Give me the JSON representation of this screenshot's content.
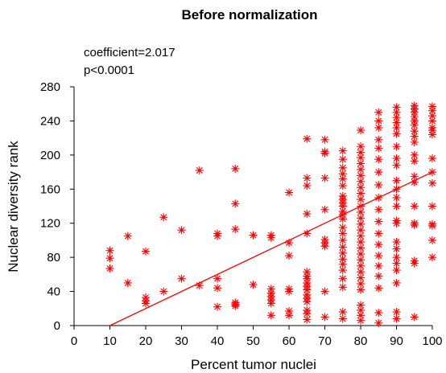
{
  "chart_data": {
    "type": "scatter",
    "title": "Before normalization",
    "annotations": [
      "coefficient=2.017",
      "p<0.0001"
    ],
    "xlabel": "Percent tumor nuclei",
    "ylabel": "Nuclear diversity rank",
    "xlim": [
      0,
      100
    ],
    "ylim": [
      0,
      280
    ],
    "xticks": [
      0,
      10,
      20,
      30,
      40,
      50,
      60,
      70,
      80,
      90,
      100
    ],
    "yticks": [
      0,
      40,
      80,
      120,
      160,
      200,
      240,
      280
    ],
    "grid": false,
    "marker": "asterisk",
    "color": "#ff0000",
    "fit_line": {
      "x": [
        10,
        100
      ],
      "y": [
        0,
        180
      ]
    },
    "points": [
      [
        10,
        88
      ],
      [
        10,
        79
      ],
      [
        10,
        67
      ],
      [
        15,
        105
      ],
      [
        15,
        50
      ],
      [
        20,
        87
      ],
      [
        20,
        33
      ],
      [
        20,
        29
      ],
      [
        20,
        26
      ],
      [
        25,
        127
      ],
      [
        25,
        40
      ],
      [
        30,
        112
      ],
      [
        30,
        55
      ],
      [
        35,
        182
      ],
      [
        35,
        47
      ],
      [
        40,
        108
      ],
      [
        40,
        105
      ],
      [
        40,
        55
      ],
      [
        40,
        44
      ],
      [
        40,
        22
      ],
      [
        45,
        184
      ],
      [
        45,
        143
      ],
      [
        45,
        113
      ],
      [
        45,
        27
      ],
      [
        45,
        25
      ],
      [
        45,
        23
      ],
      [
        50,
        106
      ],
      [
        50,
        48
      ],
      [
        55,
        106
      ],
      [
        55,
        103
      ],
      [
        55,
        43
      ],
      [
        55,
        38
      ],
      [
        55,
        34
      ],
      [
        55,
        30
      ],
      [
        55,
        26
      ],
      [
        55,
        12
      ],
      [
        60,
        156
      ],
      [
        60,
        97
      ],
      [
        60,
        82
      ],
      [
        60,
        43
      ],
      [
        60,
        40
      ],
      [
        60,
        17
      ],
      [
        60,
        12
      ],
      [
        65,
        219
      ],
      [
        65,
        173
      ],
      [
        65,
        164
      ],
      [
        65,
        131
      ],
      [
        65,
        108
      ],
      [
        65,
        63
      ],
      [
        65,
        58
      ],
      [
        65,
        55
      ],
      [
        65,
        50
      ],
      [
        65,
        46
      ],
      [
        65,
        42
      ],
      [
        65,
        36
      ],
      [
        65,
        32
      ],
      [
        65,
        28
      ],
      [
        65,
        18
      ],
      [
        65,
        14
      ],
      [
        65,
        7
      ],
      [
        70,
        218
      ],
      [
        70,
        204
      ],
      [
        70,
        202
      ],
      [
        70,
        173
      ],
      [
        70,
        136
      ],
      [
        70,
        101
      ],
      [
        70,
        97
      ],
      [
        70,
        93
      ],
      [
        70,
        40
      ],
      [
        70,
        10
      ],
      [
        75,
        205
      ],
      [
        75,
        195
      ],
      [
        75,
        185
      ],
      [
        75,
        178
      ],
      [
        75,
        172
      ],
      [
        75,
        164
      ],
      [
        75,
        152
      ],
      [
        75,
        148
      ],
      [
        75,
        144
      ],
      [
        75,
        140
      ],
      [
        75,
        134
      ],
      [
        75,
        130
      ],
      [
        75,
        125
      ],
      [
        75,
        115
      ],
      [
        75,
        108
      ],
      [
        75,
        100
      ],
      [
        75,
        92
      ],
      [
        75,
        85
      ],
      [
        75,
        78
      ],
      [
        75,
        72
      ],
      [
        75,
        65
      ],
      [
        75,
        55
      ],
      [
        75,
        45
      ],
      [
        75,
        16
      ],
      [
        75,
        8
      ],
      [
        80,
        229
      ],
      [
        80,
        210
      ],
      [
        80,
        203
      ],
      [
        80,
        197
      ],
      [
        80,
        190
      ],
      [
        80,
        183
      ],
      [
        80,
        176
      ],
      [
        80,
        169
      ],
      [
        80,
        162
      ],
      [
        80,
        155
      ],
      [
        80,
        148
      ],
      [
        80,
        140
      ],
      [
        80,
        133
      ],
      [
        80,
        126
      ],
      [
        80,
        119
      ],
      [
        80,
        112
      ],
      [
        80,
        105
      ],
      [
        80,
        98
      ],
      [
        80,
        91
      ],
      [
        80,
        84
      ],
      [
        80,
        77
      ],
      [
        80,
        70
      ],
      [
        80,
        63
      ],
      [
        80,
        56
      ],
      [
        80,
        49
      ],
      [
        80,
        42
      ],
      [
        80,
        24
      ],
      [
        80,
        18
      ],
      [
        80,
        12
      ],
      [
        80,
        6
      ],
      [
        85,
        250
      ],
      [
        85,
        240
      ],
      [
        85,
        232
      ],
      [
        85,
        218
      ],
      [
        85,
        208
      ],
      [
        85,
        195
      ],
      [
        85,
        180
      ],
      [
        85,
        165
      ],
      [
        85,
        150
      ],
      [
        85,
        136
      ],
      [
        85,
        122
      ],
      [
        85,
        108
      ],
      [
        85,
        95
      ],
      [
        85,
        82
      ],
      [
        85,
        70
      ],
      [
        85,
        58
      ],
      [
        85,
        44
      ],
      [
        85,
        15
      ],
      [
        85,
        3
      ],
      [
        90,
        256
      ],
      [
        90,
        250
      ],
      [
        90,
        244
      ],
      [
        90,
        238
      ],
      [
        90,
        232
      ],
      [
        90,
        225
      ],
      [
        90,
        210
      ],
      [
        90,
        196
      ],
      [
        90,
        188
      ],
      [
        90,
        170
      ],
      [
        90,
        160
      ],
      [
        90,
        150
      ],
      [
        90,
        140
      ],
      [
        90,
        123
      ],
      [
        90,
        120
      ],
      [
        90,
        98
      ],
      [
        90,
        90
      ],
      [
        90,
        80
      ],
      [
        90,
        73
      ],
      [
        90,
        65
      ],
      [
        90,
        50
      ],
      [
        90,
        16
      ],
      [
        90,
        8
      ],
      [
        95,
        258
      ],
      [
        95,
        254
      ],
      [
        95,
        250
      ],
      [
        95,
        245
      ],
      [
        95,
        240
      ],
      [
        95,
        235
      ],
      [
        95,
        228
      ],
      [
        95,
        222
      ],
      [
        95,
        215
      ],
      [
        95,
        200
      ],
      [
        95,
        193
      ],
      [
        95,
        175
      ],
      [
        95,
        168
      ],
      [
        95,
        140
      ],
      [
        95,
        120
      ],
      [
        95,
        118
      ],
      [
        95,
        76
      ],
      [
        95,
        73
      ],
      [
        95,
        10
      ],
      [
        100,
        257
      ],
      [
        100,
        252
      ],
      [
        100,
        246
      ],
      [
        100,
        240
      ],
      [
        100,
        232
      ],
      [
        100,
        229
      ],
      [
        100,
        224
      ],
      [
        100,
        196
      ],
      [
        100,
        180
      ],
      [
        100,
        167
      ],
      [
        100,
        140
      ],
      [
        100,
        119
      ],
      [
        100,
        117
      ],
      [
        100,
        100
      ],
      [
        100,
        80
      ]
    ]
  }
}
